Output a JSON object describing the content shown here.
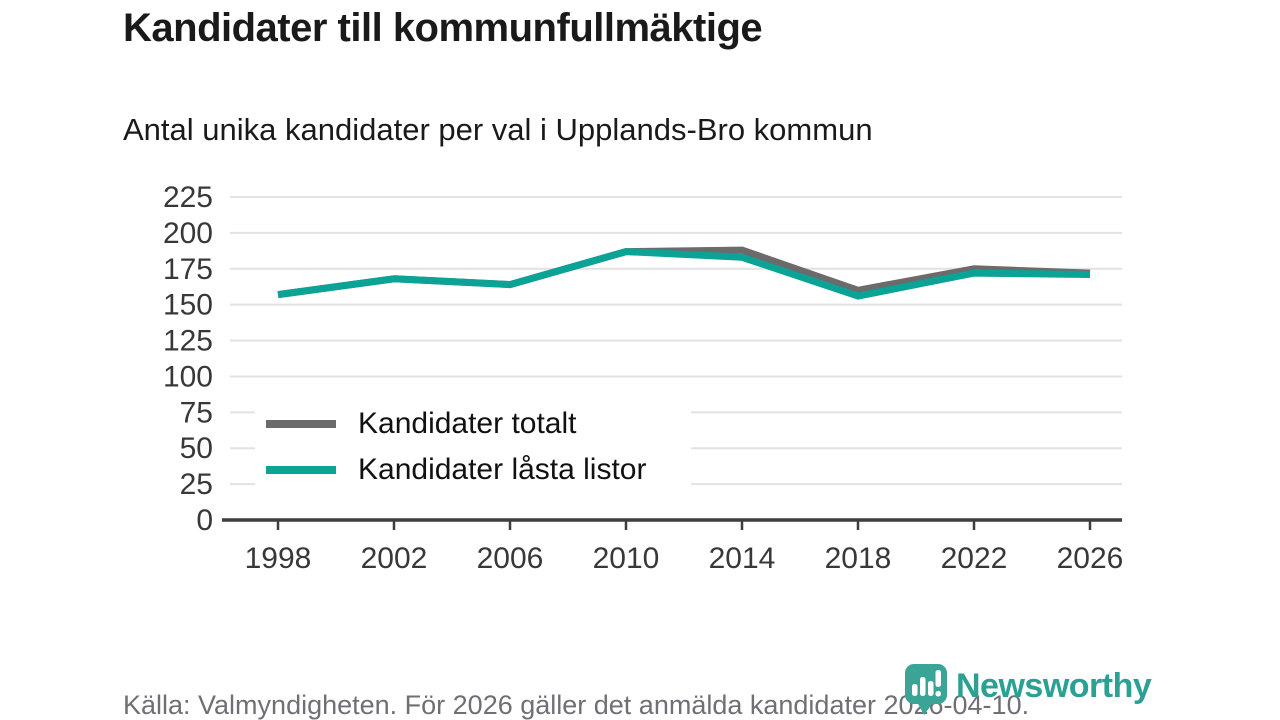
{
  "header": {
    "title": "Kandidater till kommunfullmäktige",
    "subtitle": "Antal unika kandidater per val i Upplands-Bro kommun"
  },
  "chart_data": {
    "type": "line",
    "categories": [
      "1998",
      "2002",
      "2006",
      "2010",
      "2014",
      "2018",
      "2022",
      "2026"
    ],
    "series": [
      {
        "name": "Kandidater totalt",
        "color": "#6b6b6b",
        "values": [
          157,
          168,
          164,
          187,
          188,
          160,
          175,
          172
        ]
      },
      {
        "name": "Kandidater låsta listor",
        "color": "#0aa396",
        "values": [
          157,
          168,
          164,
          187,
          183,
          156,
          172,
          171
        ]
      }
    ],
    "title": "Kandidater till kommunfullmäktige",
    "subtitle": "Antal unika kandidater per val i Upplands-Bro kommun",
    "xlabel": "",
    "ylabel": "",
    "ylim": [
      0,
      225
    ],
    "ytick_step": 25,
    "grid": "horizontal-only",
    "gridline_color": "#e2e2e2",
    "axis_color": "#3d3d3d",
    "tick_label_color": "#383838",
    "legend_position": "inside-middle-left"
  },
  "footer": {
    "source": "Källa: Valmyndigheten. För 2026 gäller det anmälda kandidater 2026-04-10."
  },
  "branding": {
    "name": "Newsworthy",
    "color": "#2ba093",
    "icon": "newsworthy-badge-bar-chart",
    "icon_color": "#3aa596"
  }
}
